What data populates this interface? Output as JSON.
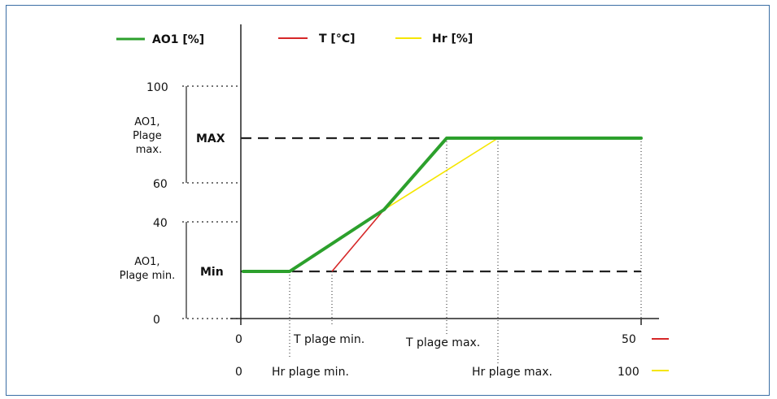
{
  "legend": {
    "ao1": {
      "label": "AO1 [%]",
      "color": "#2ca02c"
    },
    "t": {
      "label": "T [°C]",
      "color": "#d62728"
    },
    "hr": {
      "label": "Hr [%]",
      "color": "#f5e600"
    }
  },
  "y_axis": {
    "tick_100": "100",
    "tick_60": "60",
    "tick_40": "40",
    "tick_0": "0",
    "range_max_label": [
      "AO1,",
      "Plage",
      "max."
    ],
    "range_min_label": [
      "AO1,",
      "Plage min."
    ],
    "level_max": "MAX",
    "level_min": "Min"
  },
  "x_axis": {
    "t_row": {
      "start": "0",
      "plage_min": "T plage min.",
      "plage_max": "T plage max.",
      "end": "50"
    },
    "hr_row": {
      "start": "0",
      "plage_min": "Hr plage min.",
      "plage_max": "Hr plage max.",
      "end": "100"
    }
  },
  "colors": {
    "frame": "#3a6ea5",
    "axis": "#222222",
    "dashed": "#222222"
  }
}
